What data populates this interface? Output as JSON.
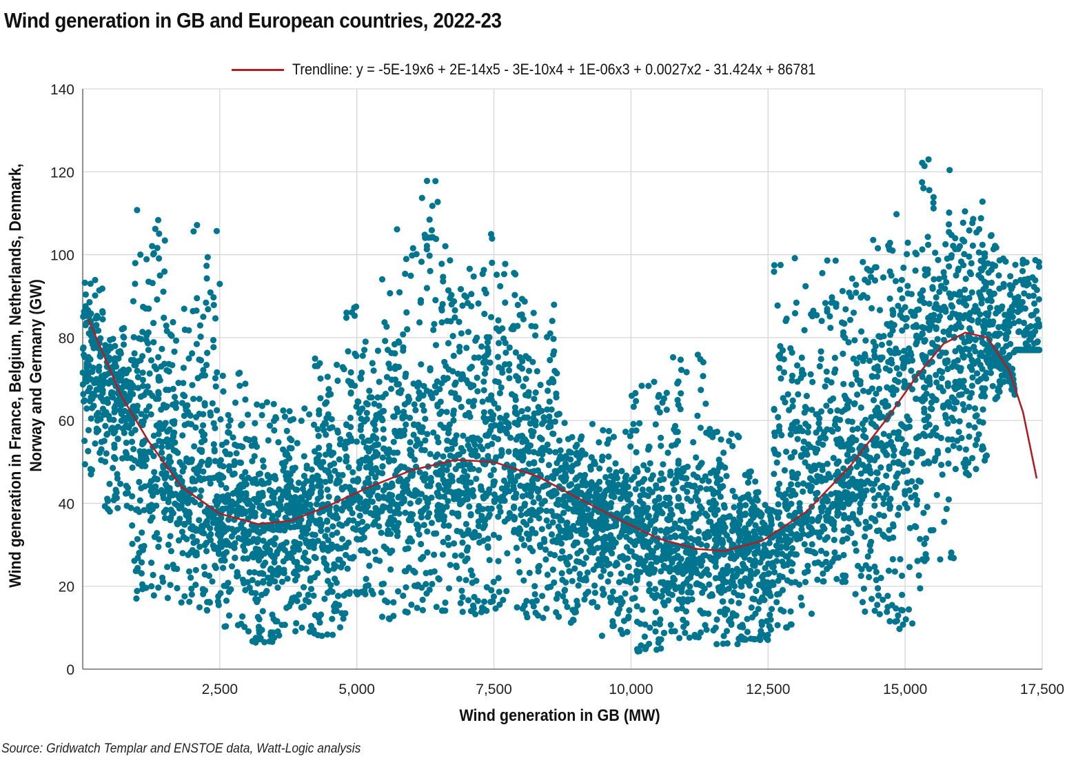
{
  "title": "Wind generation in GB and European countries, 2022-23",
  "source": "Source: Gridwatch Templar and ENSTOE data, Watt-Logic analysis",
  "legend": {
    "trend_label": "Trendline: y = -5E-19x6 + 2E-14x5 - 3E-10x4 + 1E-06x3 + 0.0027x2 - 31.424x + 86781"
  },
  "colors": {
    "points": "#00758f",
    "trendline": "#b01e23",
    "grid": "#d6d6d6"
  },
  "chart_data": {
    "type": "scatter",
    "title": "Wind generation in GB and European countries, 2022-23",
    "xlabel": "Wind generation in GB (MW)",
    "ylabel": "Wind generation in France, Belgium, Netherlands, Denmark, Norway and Germany (GW)",
    "xlim": [
      0,
      17500
    ],
    "ylim": [
      0,
      140
    ],
    "x_ticks": [
      "2,500",
      "5,000",
      "7,500",
      "10,000",
      "12,500",
      "15,000",
      "17,500"
    ],
    "x_tick_values": [
      2500,
      5000,
      7500,
      10000,
      12500,
      15000,
      17500
    ],
    "y_ticks": [
      "0",
      "20",
      "40",
      "60",
      "80",
      "100",
      "120",
      "140"
    ],
    "y_tick_values": [
      0,
      20,
      40,
      60,
      80,
      100,
      120,
      140
    ],
    "grid": true,
    "legend_position": "top",
    "series": [
      {
        "kind": "points",
        "bands": [
          {
            "x": [
              0,
              400
            ],
            "y": [
              47,
              94
            ]
          },
          {
            "x": [
              400,
              900
            ],
            "y": [
              38,
              84
            ]
          },
          {
            "x": [
              900,
              1500
            ],
            "y": [
              17,
              111
            ]
          },
          {
            "x": [
              1500,
              2000
            ],
            "y": [
              16,
              87
            ]
          },
          {
            "x": [
              2000,
              2500
            ],
            "y": [
              14,
              108
            ]
          },
          {
            "x": [
              2500,
              3000
            ],
            "y": [
              10,
              72
            ]
          },
          {
            "x": [
              3000,
              3600
            ],
            "y": [
              6,
              65
            ]
          },
          {
            "x": [
              3600,
              4200
            ],
            "y": [
              9,
              63
            ]
          },
          {
            "x": [
              4200,
              4800
            ],
            "y": [
              8,
              75
            ]
          },
          {
            "x": [
              4800,
              5400
            ],
            "y": [
              18,
              88
            ]
          },
          {
            "x": [
              5400,
              6000
            ],
            "y": [
              12,
              107
            ]
          },
          {
            "x": [
              6000,
              6700
            ],
            "y": [
              14,
              121
            ]
          },
          {
            "x": [
              6700,
              7300
            ],
            "y": [
              13,
              97
            ]
          },
          {
            "x": [
              7300,
              8000
            ],
            "y": [
              14,
              105
            ]
          },
          {
            "x": [
              8000,
              8700
            ],
            "y": [
              12,
              90
            ]
          },
          {
            "x": [
              8700,
              9400
            ],
            "y": [
              11,
              60
            ]
          },
          {
            "x": [
              9400,
              10000
            ],
            "y": [
              8,
              58
            ]
          },
          {
            "x": [
              10000,
              10700
            ],
            "y": [
              4,
              70
            ]
          },
          {
            "x": [
              10700,
              11400
            ],
            "y": [
              7,
              76
            ]
          },
          {
            "x": [
              11400,
              12000
            ],
            "y": [
              6,
              58
            ]
          },
          {
            "x": [
              12000,
              12600
            ],
            "y": [
              7,
              48
            ]
          },
          {
            "x": [
              12600,
              13300
            ],
            "y": [
              10,
              100
            ]
          },
          {
            "x": [
              13300,
              14000
            ],
            "y": [
              21,
              101
            ]
          },
          {
            "x": [
              14000,
              14700
            ],
            "y": [
              13,
              104
            ]
          },
          {
            "x": [
              14700,
              15300
            ],
            "y": [
              9,
              111
            ]
          },
          {
            "x": [
              15300,
              15900
            ],
            "y": [
              26,
              123
            ]
          },
          {
            "x": [
              15900,
              16500
            ],
            "y": [
              46,
              114
            ]
          },
          {
            "x": [
              16500,
              17000
            ],
            "y": [
              65,
              105
            ]
          },
          {
            "x": [
              17000,
              17450
            ],
            "y": [
              77,
              99
            ]
          }
        ]
      },
      {
        "kind": "trendline",
        "name": "Trendline: y = -5E-19x6 + 2E-14x5 - 3E-10x4 + 1E-06x3 + 0.0027x2 - 31.424x + 86781",
        "x": [
          100,
          700,
          1200,
          1800,
          2500,
          3200,
          3800,
          4500,
          5200,
          6000,
          6800,
          7500,
          8300,
          9000,
          9800,
          10500,
          11200,
          11700,
          12400,
          13200,
          14000,
          14700,
          15200,
          15700,
          16100,
          16500,
          16900,
          17150,
          17400
        ],
        "y": [
          84.5,
          66,
          55,
          44,
          37.5,
          35,
          35.8,
          39.5,
          43.8,
          48,
          50.5,
          50,
          46.5,
          41.5,
          36,
          31.5,
          29,
          28.5,
          31,
          38,
          49,
          61,
          70.5,
          78.5,
          81.2,
          80,
          72,
          62,
          46
        ]
      }
    ]
  }
}
